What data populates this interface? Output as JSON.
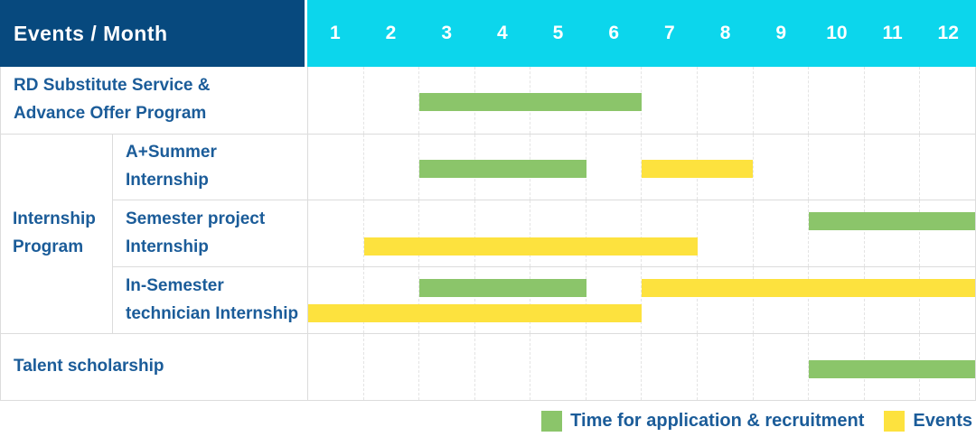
{
  "header": {
    "title": "Events / Month",
    "months": [
      "1",
      "2",
      "3",
      "4",
      "5",
      "6",
      "7",
      "8",
      "9",
      "10",
      "11",
      "12"
    ]
  },
  "row_labels": {
    "rd_substitute": "RD Substitute Service &\nAdvance Offer Program",
    "internship_group": "Internship\nProgram",
    "a_summer": "A+Summer\nInternship",
    "semester_project": "Semester project\nInternship",
    "in_semester": "In-Semester\ntechnician Internship",
    "talent": "Talent scholarship"
  },
  "legend": {
    "recruitment": "Time for application & recruitment",
    "events": "Events"
  },
  "colors": {
    "header_blue": "#07497e",
    "month_cyan": "#0cd6ec",
    "bar_green": "#8bc56a",
    "bar_yellow": "#fde23e",
    "label_blue": "#1b5c99",
    "grid": "#dcdcdc"
  },
  "chart_data": {
    "type": "gantt",
    "x_axis": {
      "label": "Month",
      "ticks": [
        "1",
        "2",
        "3",
        "4",
        "5",
        "6",
        "7",
        "8",
        "9",
        "10",
        "11",
        "12"
      ],
      "range": [
        1,
        12
      ]
    },
    "series": [
      {
        "name": "Time for application & recruitment",
        "kind": "recruitment",
        "color": "#8bc56a"
      },
      {
        "name": "Events",
        "kind": "events",
        "color": "#fde23e"
      }
    ],
    "legend_position": "bottom-right",
    "rows": [
      {
        "label": "RD Substitute Service & Advance Offer Program",
        "group": null,
        "bars": [
          {
            "kind": "recruitment",
            "months": [
              3,
              6
            ],
            "lane": "single"
          }
        ]
      },
      {
        "label": "A+Summer Internship",
        "group": "Internship Program",
        "bars": [
          {
            "kind": "recruitment",
            "months": [
              3,
              5
            ],
            "lane": "single"
          },
          {
            "kind": "events",
            "months": [
              7,
              8
            ],
            "lane": "single"
          }
        ]
      },
      {
        "label": "Semester project Internship",
        "group": "Internship Program",
        "bars": [
          {
            "kind": "recruitment",
            "months": [
              10,
              12
            ],
            "lane": "upper"
          },
          {
            "kind": "events",
            "months": [
              2,
              7
            ],
            "lane": "lower"
          }
        ]
      },
      {
        "label": "In-Semester technician Internship",
        "group": "Internship Program",
        "bars": [
          {
            "kind": "recruitment",
            "months": [
              3,
              5
            ],
            "lane": "upper"
          },
          {
            "kind": "events",
            "months": [
              7,
              12
            ],
            "lane": "upper"
          },
          {
            "kind": "events",
            "months": [
              1,
              6
            ],
            "lane": "lower"
          }
        ]
      },
      {
        "label": "Talent scholarship",
        "group": null,
        "bars": [
          {
            "kind": "recruitment",
            "months": [
              10,
              12
            ],
            "lane": "single"
          }
        ]
      }
    ]
  }
}
